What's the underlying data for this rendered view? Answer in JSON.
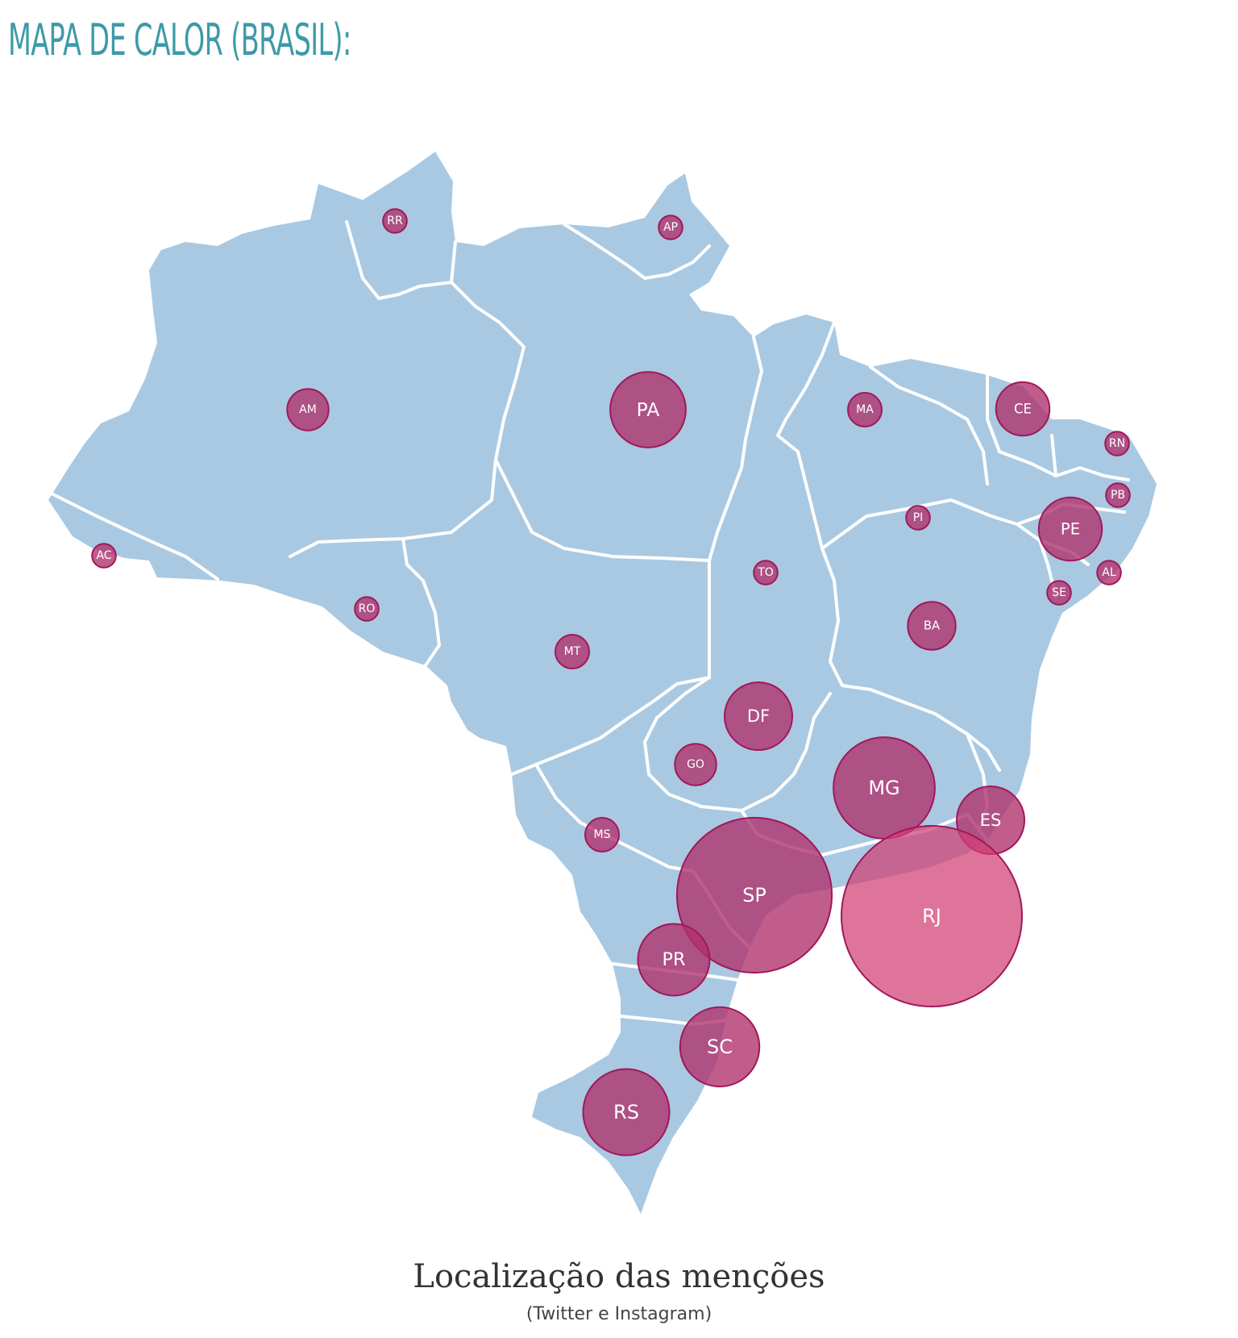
{
  "heading": "MAPA DE CALOR (BRASIL):",
  "chart": {
    "title": "Localização das menções",
    "subtitle": "(Twitter e Instagram)",
    "colors": {
      "land": "#a9c9e2",
      "border": "#ffffff",
      "bubble_fill": "#b0306a",
      "bubble_fill_highlight": "#d13f73",
      "bubble_stroke": "#a0185a",
      "label": "#ffffff"
    },
    "states": [
      {
        "id": "RR",
        "label": "RR",
        "magnitude": 1
      },
      {
        "id": "AP",
        "label": "AP",
        "magnitude": 1
      },
      {
        "id": "AM",
        "label": "AM",
        "magnitude": 3
      },
      {
        "id": "PA",
        "label": "PA",
        "magnitude": 10
      },
      {
        "id": "MA",
        "label": "MA",
        "magnitude": 2
      },
      {
        "id": "CE",
        "label": "CE",
        "magnitude": 5
      },
      {
        "id": "RN",
        "label": "RN",
        "magnitude": 1
      },
      {
        "id": "PB",
        "label": "PB",
        "magnitude": 1
      },
      {
        "id": "PE",
        "label": "PE",
        "magnitude": 7
      },
      {
        "id": "PI",
        "label": "PI",
        "magnitude": 1
      },
      {
        "id": "AL",
        "label": "AL",
        "magnitude": 1
      },
      {
        "id": "SE",
        "label": "SE",
        "magnitude": 1
      },
      {
        "id": "AC",
        "label": "AC",
        "magnitude": 1
      },
      {
        "id": "RO",
        "label": "RO",
        "magnitude": 1
      },
      {
        "id": "TO",
        "label": "TO",
        "magnitude": 1
      },
      {
        "id": "MT",
        "label": "MT",
        "magnitude": 2
      },
      {
        "id": "BA",
        "label": "BA",
        "magnitude": 4
      },
      {
        "id": "DF",
        "label": "DF",
        "magnitude": 8
      },
      {
        "id": "GO",
        "label": "GO",
        "magnitude": 3
      },
      {
        "id": "MG",
        "label": "MG",
        "magnitude": 18
      },
      {
        "id": "ES",
        "label": "ES",
        "magnitude": 8
      },
      {
        "id": "MS",
        "label": "MS",
        "magnitude": 2
      },
      {
        "id": "SP",
        "label": "SP",
        "magnitude": 42
      },
      {
        "id": "RJ",
        "label": "RJ",
        "magnitude": 57
      },
      {
        "id": "PR",
        "label": "PR",
        "magnitude": 9
      },
      {
        "id": "SC",
        "label": "SC",
        "magnitude": 11
      },
      {
        "id": "RS",
        "label": "RS",
        "magnitude": 13
      }
    ]
  }
}
